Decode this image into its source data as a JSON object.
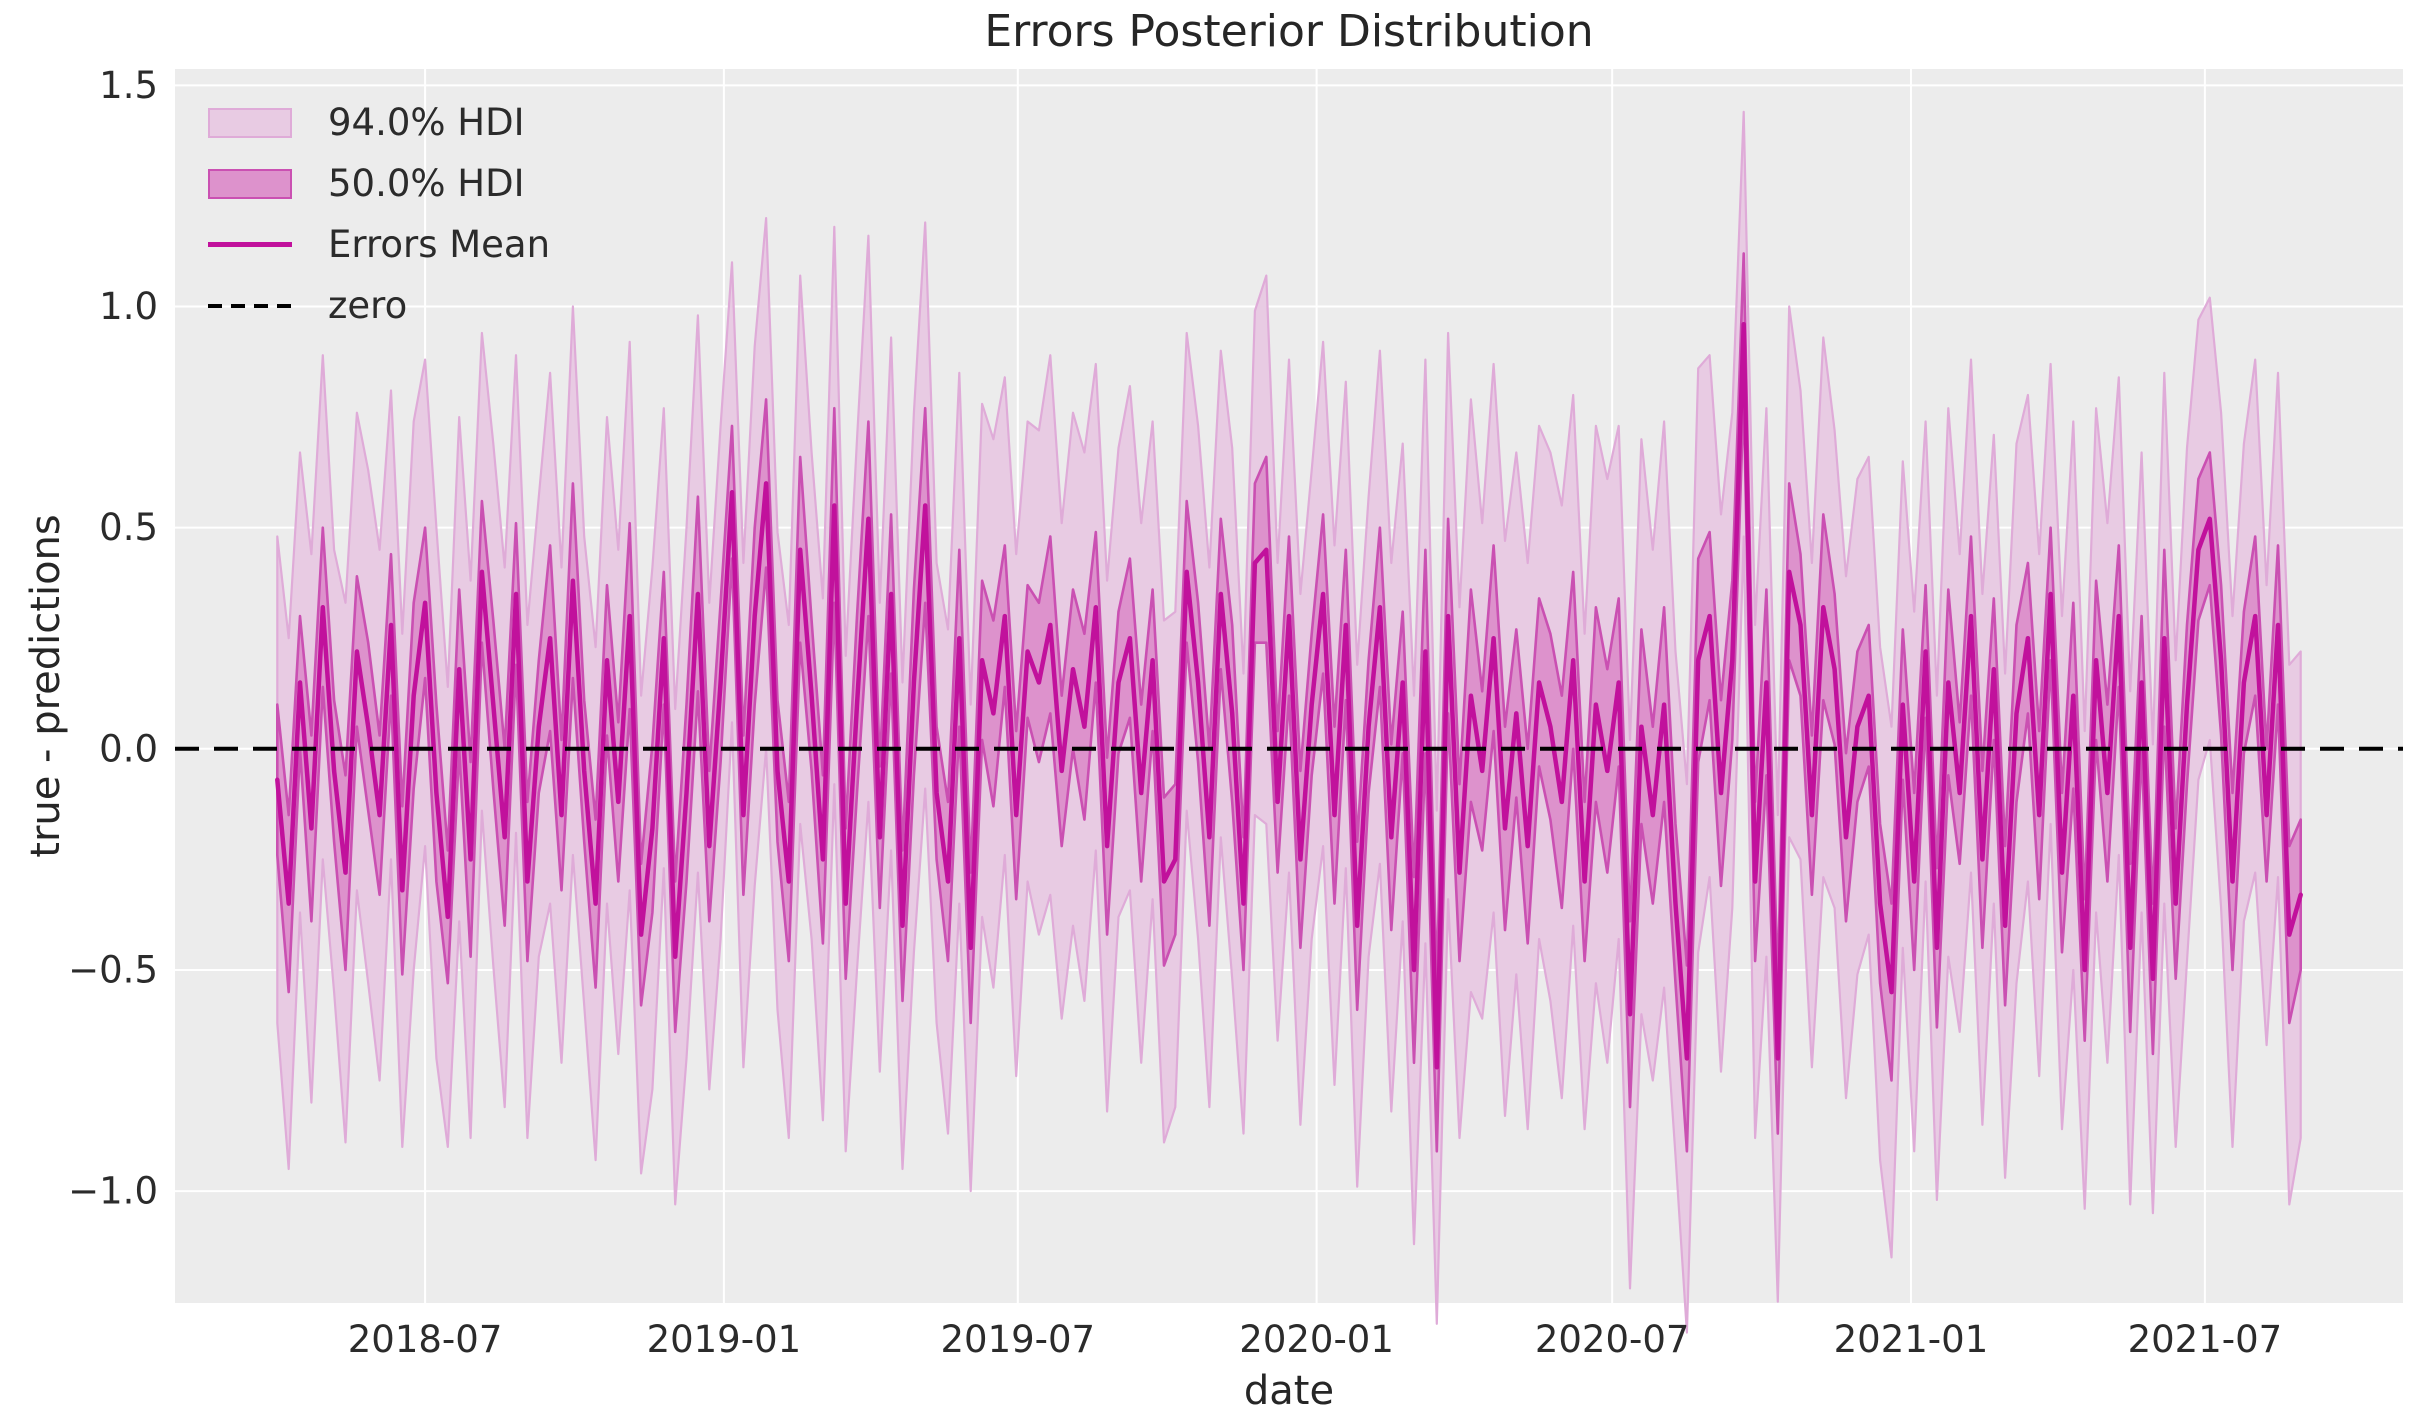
{
  "title": "Errors Posterior Distribution",
  "axes": {
    "xlabel": "date",
    "ylabel": "true - predictions"
  },
  "legend": {
    "items": [
      {
        "label": "94.0% HDI",
        "type": "patch",
        "fill": "#e8cbe3",
        "edge": "#dfabd8"
      },
      {
        "label": "50.0% HDI",
        "type": "patch",
        "fill": "#dd92cc",
        "edge": "#ca50b2"
      },
      {
        "label": "Errors Mean",
        "type": "line",
        "color": "#c1119c"
      },
      {
        "label": "zero",
        "type": "dashed-line",
        "color": "#000000"
      }
    ]
  },
  "colors": {
    "plot_background": "#ececec",
    "grid": "#ffffff",
    "hdi94_fill": "#e8cbe3",
    "hdi94_edge": "#dfabd8",
    "hdi50_fill": "#dd92cc",
    "hdi50_edge": "#ca50b2",
    "mean_line": "#c1119c",
    "zero_line": "#000000",
    "text": "#2b2b2b"
  },
  "chart_data": {
    "type": "line",
    "title": "Errors Posterior Distribution",
    "xlabel": "date",
    "ylabel": "true - predictions",
    "grid": true,
    "legend_position": "upper left",
    "ylim": [
      -1.253,
      1.537
    ],
    "xlim": [
      "2018-01-28",
      "2021-10-31"
    ],
    "y_ticks": [
      1.5,
      1.0,
      0.5,
      0.0,
      -0.5,
      -1.0
    ],
    "y_tick_labels": [
      "1.5",
      "1.0",
      "0.5",
      "0.0",
      "−0.5",
      "−1.0"
    ],
    "x_ticks": [
      {
        "date": "2018-07-01",
        "label": "2018-07"
      },
      {
        "date": "2019-01-01",
        "label": "2019-01"
      },
      {
        "date": "2019-07-01",
        "label": "2019-07"
      },
      {
        "date": "2020-01-01",
        "label": "2020-01"
      },
      {
        "date": "2020-07-01",
        "label": "2020-07"
      },
      {
        "date": "2021-01-01",
        "label": "2021-01"
      },
      {
        "date": "2021-07-01",
        "label": "2021-07"
      }
    ],
    "zero_reference": 0.0,
    "x_start": "2018-04-01",
    "x_step_days": 7,
    "series": [
      {
        "name": "Errors Mean",
        "role": "mean"
      },
      {
        "name": "94.0% HDI",
        "role": "band",
        "halfwidth_key": "hdi94_halfwidth"
      },
      {
        "name": "50.0% HDI",
        "role": "band",
        "halfwidth_key": "hdi50_halfwidth"
      }
    ],
    "mean": [
      -0.07,
      -0.35,
      0.15,
      -0.18,
      0.32,
      -0.05,
      -0.28,
      0.22,
      0.05,
      -0.15,
      0.28,
      -0.32,
      0.12,
      0.33,
      -0.1,
      -0.38,
      0.18,
      -0.25,
      0.4,
      0.1,
      -0.2,
      0.35,
      -0.3,
      0.05,
      0.25,
      -0.15,
      0.38,
      -0.05,
      -0.35,
      0.2,
      -0.12,
      0.3,
      -0.42,
      -0.18,
      0.25,
      -0.47,
      -0.1,
      0.35,
      -0.22,
      0.15,
      0.58,
      -0.15,
      0.3,
      0.6,
      -0.05,
      -0.3,
      0.45,
      0.12,
      -0.25,
      0.55,
      -0.35,
      0.1,
      0.52,
      -0.2,
      0.35,
      -0.4,
      0.15,
      0.55,
      -0.1,
      -0.3,
      0.25,
      -0.45,
      0.2,
      0.08,
      0.3,
      -0.15,
      0.22,
      0.15,
      0.28,
      -0.05,
      0.18,
      0.05,
      0.32,
      -0.22,
      0.15,
      0.25,
      -0.1,
      0.2,
      -0.3,
      -0.25,
      0.4,
      0.15,
      -0.2,
      0.35,
      0.08,
      -0.35,
      0.42,
      0.45,
      -0.12,
      0.3,
      -0.25,
      0.1,
      0.35,
      -0.15,
      0.28,
      -0.4,
      0.05,
      0.32,
      -0.2,
      0.15,
      -0.5,
      0.22,
      -0.72,
      0.3,
      -0.28,
      0.12,
      -0.05,
      0.25,
      -0.18,
      0.08,
      -0.22,
      0.15,
      0.05,
      -0.12,
      0.2,
      -0.3,
      0.1,
      -0.05,
      0.15,
      -0.6,
      0.05,
      -0.15,
      0.1,
      -0.35,
      -0.7,
      0.2,
      0.3,
      -0.1,
      0.2,
      0.96,
      -0.3,
      0.15,
      -0.7,
      0.4,
      0.28,
      -0.15,
      0.32,
      0.18,
      -0.2,
      0.05,
      0.12,
      -0.35,
      -0.55,
      0.1,
      -0.3,
      0.22,
      -0.45,
      0.15,
      -0.1,
      0.3,
      -0.25,
      0.18,
      -0.4,
      0.08,
      0.25,
      -0.15,
      0.35,
      -0.28,
      0.12,
      -0.5,
      0.2,
      -0.1,
      0.3,
      -0.45,
      0.15,
      -0.52,
      0.25,
      -0.35,
      0.1,
      0.45,
      0.52,
      0.2,
      -0.3,
      0.15,
      0.3,
      -0.15,
      0.28,
      -0.42,
      -0.33
    ],
    "hdi94_halfwidth": [
      0.55,
      0.6,
      0.52,
      0.62,
      0.57,
      0.5,
      0.61,
      0.54,
      0.58,
      0.6,
      0.53,
      0.58,
      0.62,
      0.55,
      0.6,
      0.52,
      0.57,
      0.63,
      0.54,
      0.59,
      0.61,
      0.54,
      0.58,
      0.52,
      0.6,
      0.56,
      0.62,
      0.53,
      0.58,
      0.55,
      0.57,
      0.62,
      0.54,
      0.59,
      0.52,
      0.56,
      0.6,
      0.63,
      0.55,
      0.58,
      0.52,
      0.57,
      0.61,
      0.6,
      0.54,
      0.58,
      0.62,
      0.55,
      0.59,
      0.63,
      0.56,
      0.6,
      0.64,
      0.53,
      0.58,
      0.55,
      0.61,
      0.64,
      0.52,
      0.57,
      0.6,
      0.55,
      0.58,
      0.62,
      0.54,
      0.59,
      0.52,
      0.57,
      0.61,
      0.56,
      0.58,
      0.62,
      0.55,
      0.6,
      0.53,
      0.57,
      0.61,
      0.54,
      0.59,
      0.56,
      0.54,
      0.58,
      0.61,
      0.55,
      0.6,
      0.52,
      0.57,
      0.62,
      0.54,
      0.58,
      0.6,
      0.53,
      0.57,
      0.61,
      0.55,
      0.59,
      0.52,
      0.58,
      0.62,
      0.54,
      0.62,
      0.66,
      0.58,
      0.64,
      0.6,
      0.67,
      0.56,
      0.62,
      0.65,
      0.59,
      0.64,
      0.58,
      0.62,
      0.67,
      0.6,
      0.56,
      0.63,
      0.66,
      0.58,
      0.62,
      0.65,
      0.6,
      0.64,
      0.57,
      0.62,
      0.66,
      0.59,
      0.63,
      0.56,
      0.48,
      0.58,
      0.62,
      0.55,
      0.6,
      0.53,
      0.57,
      0.61,
      0.54,
      0.59,
      0.56,
      0.54,
      0.58,
      0.6,
      0.55,
      0.61,
      0.52,
      0.57,
      0.62,
      0.54,
      0.58,
      0.6,
      0.53,
      0.57,
      0.61,
      0.55,
      0.59,
      0.52,
      0.58,
      0.62,
      0.54,
      0.57,
      0.61,
      0.54,
      0.58,
      0.52,
      0.53,
      0.6,
      0.55,
      0.58,
      0.52,
      0.5,
      0.56,
      0.6,
      0.54,
      0.58,
      0.52,
      0.57,
      0.61,
      0.55
    ],
    "hdi50_halfwidth": [
      0.17,
      0.2,
      0.15,
      0.21,
      0.18,
      0.16,
      0.22,
      0.17,
      0.19,
      0.18,
      0.16,
      0.19,
      0.21,
      0.17,
      0.2,
      0.15,
      0.18,
      0.22,
      0.16,
      0.19,
      0.2,
      0.16,
      0.18,
      0.15,
      0.21,
      0.17,
      0.22,
      0.16,
      0.19,
      0.17,
      0.18,
      0.21,
      0.16,
      0.19,
      0.15,
      0.17,
      0.2,
      0.22,
      0.17,
      0.18,
      0.15,
      0.18,
      0.2,
      0.19,
      0.16,
      0.18,
      0.21,
      0.17,
      0.19,
      0.22,
      0.17,
      0.2,
      0.22,
      0.16,
      0.18,
      0.17,
      0.21,
      0.22,
      0.15,
      0.18,
      0.2,
      0.17,
      0.18,
      0.21,
      0.16,
      0.19,
      0.15,
      0.18,
      0.2,
      0.17,
      0.18,
      0.21,
      0.17,
      0.2,
      0.16,
      0.18,
      0.2,
      0.16,
      0.19,
      0.17,
      0.16,
      0.18,
      0.2,
      0.17,
      0.2,
      0.15,
      0.18,
      0.21,
      0.16,
      0.18,
      0.2,
      0.16,
      0.18,
      0.2,
      0.17,
      0.19,
      0.15,
      0.18,
      0.21,
      0.16,
      0.21,
      0.23,
      0.19,
      0.22,
      0.2,
      0.24,
      0.18,
      0.21,
      0.23,
      0.19,
      0.22,
      0.19,
      0.21,
      0.24,
      0.2,
      0.18,
      0.22,
      0.23,
      0.19,
      0.21,
      0.22,
      0.2,
      0.22,
      0.18,
      0.21,
      0.23,
      0.19,
      0.21,
      0.18,
      0.16,
      0.18,
      0.21,
      0.17,
      0.2,
      0.16,
      0.18,
      0.21,
      0.17,
      0.19,
      0.17,
      0.16,
      0.18,
      0.2,
      0.17,
      0.2,
      0.15,
      0.18,
      0.21,
      0.16,
      0.18,
      0.2,
      0.16,
      0.18,
      0.2,
      0.17,
      0.19,
      0.15,
      0.18,
      0.21,
      0.16,
      0.18,
      0.2,
      0.16,
      0.19,
      0.15,
      0.17,
      0.2,
      0.17,
      0.18,
      0.16,
      0.15,
      0.17,
      0.2,
      0.16,
      0.18,
      0.15,
      0.18,
      0.2,
      0.17
    ]
  }
}
